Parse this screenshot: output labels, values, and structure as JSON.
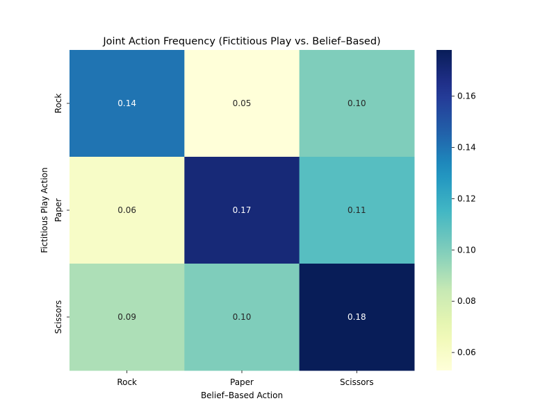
{
  "chart_data": {
    "type": "heatmap",
    "title": "Joint Action Frequency (Fictitious Play vs. Belief–Based)",
    "xlabel": "Belief–Based Action",
    "ylabel": "Fictitious Play Action",
    "x_categories": [
      "Rock",
      "Paper",
      "Scissors"
    ],
    "y_categories": [
      "Rock",
      "Paper",
      "Scissors"
    ],
    "values": [
      [
        0.14,
        0.05,
        0.1
      ],
      [
        0.06,
        0.17,
        0.11
      ],
      [
        0.09,
        0.1,
        0.18
      ]
    ],
    "cell_labels": [
      [
        "0.14",
        "0.05",
        "0.10"
      ],
      [
        "0.06",
        "0.17",
        "0.11"
      ],
      [
        "0.09",
        "0.10",
        "0.18"
      ]
    ],
    "colormap": "YlGnBu",
    "colorbar": {
      "range": [
        0.053,
        0.178
      ],
      "ticks": [
        0.06,
        0.08,
        0.1,
        0.12,
        0.14,
        0.16
      ],
      "tick_labels": [
        "0.06",
        "0.08",
        "0.10",
        "0.12",
        "0.14",
        "0.16"
      ]
    }
  }
}
